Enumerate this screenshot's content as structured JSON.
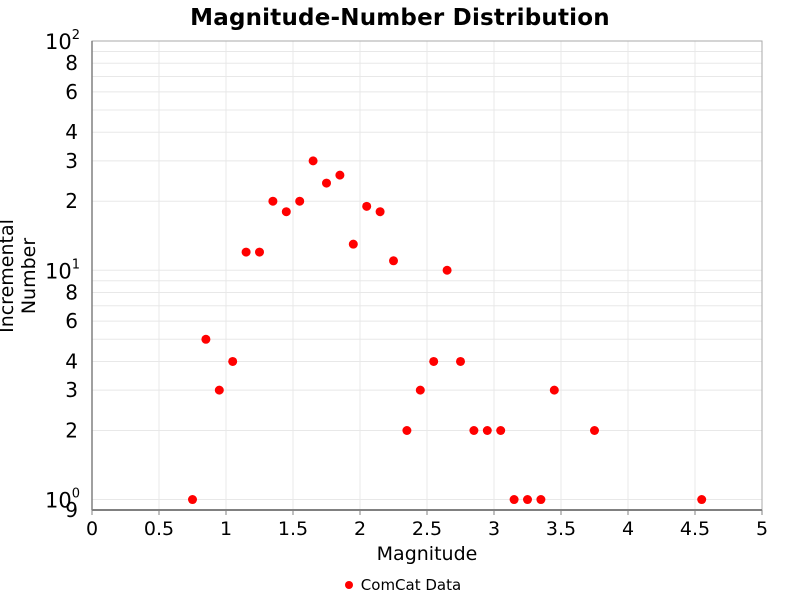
{
  "colors": {
    "marker": "#ff0000",
    "grid": "#e8e8e8",
    "frame": "#aaaaaa",
    "axis_line": "#808080",
    "text": "#000000"
  },
  "chart_data": {
    "type": "scatter",
    "title": "Magnitude-Number Distribution",
    "xlabel": "Magnitude",
    "ylabel": "Incremental Number",
    "x_range": [
      0,
      5
    ],
    "y_range": [
      0.9,
      100
    ],
    "y_scale": "log",
    "grid": "on",
    "x_ticks": {
      "values": [
        0,
        0.5,
        1,
        1.5,
        2,
        2.5,
        3,
        3.5,
        4,
        4.5,
        5
      ],
      "labels": [
        "0",
        "0.5",
        "1",
        "1.5",
        "2",
        "2.5",
        "3",
        "3.5",
        "4",
        "4.5",
        "5"
      ]
    },
    "y_ticks": {
      "decades": [
        {
          "value": 100,
          "base": "10",
          "exp": "2"
        },
        {
          "value": 10,
          "base": "10",
          "exp": "1"
        },
        {
          "value": 1,
          "base": "10",
          "exp": "0"
        }
      ],
      "minors": [
        {
          "value": 80,
          "label": "8"
        },
        {
          "value": 60,
          "label": "6"
        },
        {
          "value": 40,
          "label": "4"
        },
        {
          "value": 30,
          "label": "3"
        },
        {
          "value": 20,
          "label": "2"
        },
        {
          "value": 8,
          "label": "8"
        },
        {
          "value": 6,
          "label": "6"
        },
        {
          "value": 4,
          "label": "4"
        },
        {
          "value": 3,
          "label": "3"
        },
        {
          "value": 2,
          "label": "2"
        },
        {
          "value": 0.9,
          "label": "9"
        }
      ]
    },
    "gridline_values": {
      "x": [
        0.5,
        1,
        1.5,
        2,
        2.5,
        3,
        3.5,
        4,
        4.5
      ],
      "y": [
        1,
        2,
        3,
        4,
        5,
        6,
        7,
        8,
        9,
        10,
        20,
        30,
        40,
        50,
        60,
        70,
        80,
        90
      ]
    },
    "legend": {
      "label": "ComCat Data",
      "position": "bottom-center"
    },
    "marker": {
      "color": "#ff0000",
      "radius": 4.5
    },
    "series": [
      {
        "name": "ComCat Data",
        "x": [
          0.75,
          0.85,
          0.95,
          1.05,
          1.15,
          1.25,
          1.35,
          1.45,
          1.55,
          1.65,
          1.75,
          1.85,
          1.95,
          2.05,
          2.15,
          2.25,
          2.35,
          2.45,
          2.55,
          2.65,
          2.75,
          2.85,
          2.95,
          3.05,
          3.15,
          3.25,
          3.35,
          3.45,
          3.75,
          4.55
        ],
        "y": [
          1,
          5,
          3,
          4,
          12,
          12,
          20,
          18,
          20,
          30,
          24,
          26,
          13,
          19,
          18,
          11,
          2,
          3,
          4,
          10,
          4,
          2,
          2,
          2,
          1,
          1,
          1,
          3,
          2,
          1
        ]
      }
    ]
  }
}
